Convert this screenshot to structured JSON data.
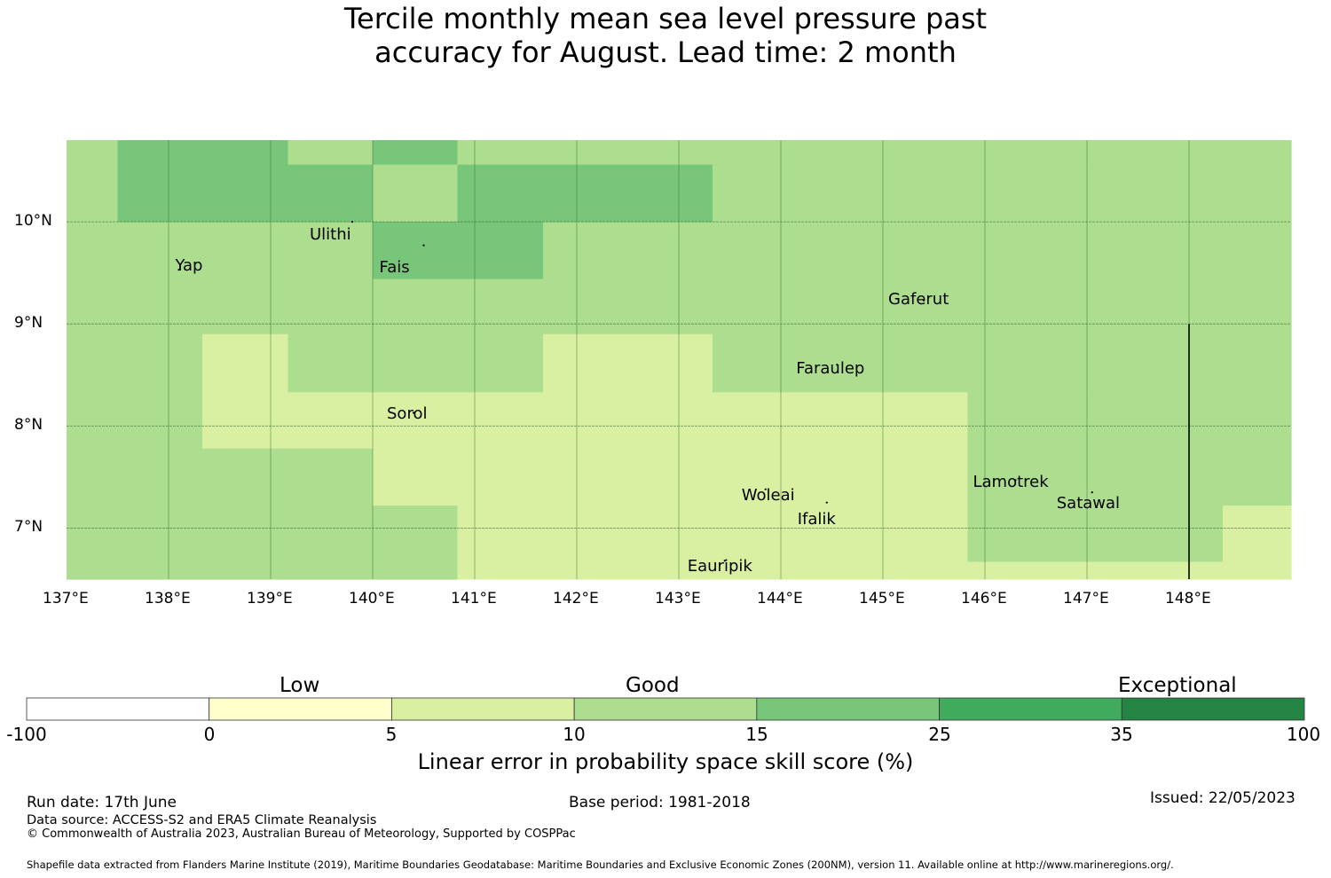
{
  "title": {
    "line1": "Tercile monthly mean sea level pressure past",
    "line2": "accuracy for August. Lead time: 2 month"
  },
  "map": {
    "lon_range": [
      137.0,
      149.0
    ],
    "lat_range": [
      6.5,
      10.8
    ],
    "x_ticks": [
      "137°E",
      "138°E",
      "139°E",
      "140°E",
      "141°E",
      "142°E",
      "143°E",
      "144°E",
      "145°E",
      "146°E",
      "147°E",
      "148°E"
    ],
    "y_ticks": [
      "10°N",
      "9°N",
      "8°N",
      "7°N"
    ],
    "grid": true,
    "places": [
      {
        "name": "Ulithi",
        "lon": 139.8,
        "lat": 10.0
      },
      {
        "name": "Fais",
        "lon": 140.5,
        "lat": 9.77
      },
      {
        "name": "Yap",
        "lon": 138.1,
        "lat": 9.53
      },
      {
        "name": "Gaferut",
        "lon": 145.4,
        "lat": 9.23
      },
      {
        "name": "Faraulep",
        "lon": 144.55,
        "lat": 8.6
      },
      {
        "name": "Sorol",
        "lon": 140.4,
        "lat": 8.13
      },
      {
        "name": "Woleai",
        "lon": 143.85,
        "lat": 7.38
      },
      {
        "name": "Ifalik",
        "lon": 144.45,
        "lat": 7.25
      },
      {
        "name": "Lamotrek",
        "lon": 146.3,
        "lat": 7.47
      },
      {
        "name": "Satawal",
        "lon": 147.05,
        "lat": 7.35
      },
      {
        "name": "Eauripik",
        "lon": 143.45,
        "lat": 6.68
      }
    ],
    "boundary_line": {
      "lon": 148.0,
      "lat_from": 6.5,
      "lat_to": 9.0
    },
    "grid_cells": [
      {
        "lon": [
          137.0,
          137.5
        ],
        "lat": [
          10.0,
          10.8
        ],
        "cls": "10-15"
      },
      {
        "lon": [
          137.5,
          139.17
        ],
        "lat": [
          10.0,
          10.8
        ],
        "cls": "15-25"
      },
      {
        "lon": [
          139.17,
          140.0
        ],
        "lat": [
          10.56,
          10.8
        ],
        "cls": "10-15"
      },
      {
        "lon": [
          139.17,
          140.0
        ],
        "lat": [
          10.0,
          10.56
        ],
        "cls": "15-25"
      },
      {
        "lon": [
          140.0,
          140.83
        ],
        "lat": [
          10.56,
          10.8
        ],
        "cls": "15-25"
      },
      {
        "lon": [
          140.0,
          140.83
        ],
        "lat": [
          10.0,
          10.56
        ],
        "cls": "10-15"
      },
      {
        "lon": [
          140.83,
          149.0
        ],
        "lat": [
          10.56,
          10.8
        ],
        "cls": "10-15"
      },
      {
        "lon": [
          140.83,
          143.33
        ],
        "lat": [
          10.0,
          10.56
        ],
        "cls": "15-25"
      },
      {
        "lon": [
          143.33,
          149.0
        ],
        "lat": [
          10.0,
          10.56
        ],
        "cls": "10-15"
      },
      {
        "lon": [
          137.0,
          140.0
        ],
        "lat": [
          8.9,
          10.0
        ],
        "cls": "10-15"
      },
      {
        "lon": [
          140.0,
          141.67
        ],
        "lat": [
          9.44,
          10.0
        ],
        "cls": "15-25"
      },
      {
        "lon": [
          140.0,
          141.67
        ],
        "lat": [
          8.9,
          9.44
        ],
        "cls": "10-15"
      },
      {
        "lon": [
          141.67,
          149.0
        ],
        "lat": [
          8.9,
          10.0
        ],
        "cls": "10-15"
      },
      {
        "lon": [
          137.0,
          138.33
        ],
        "lat": [
          6.5,
          8.9
        ],
        "cls": "10-15"
      },
      {
        "lon": [
          138.33,
          139.17
        ],
        "lat": [
          7.78,
          8.9
        ],
        "cls": "5-10"
      },
      {
        "lon": [
          139.17,
          141.67
        ],
        "lat": [
          8.33,
          8.9
        ],
        "cls": "10-15"
      },
      {
        "lon": [
          139.17,
          141.67
        ],
        "lat": [
          7.78,
          8.33
        ],
        "cls": "5-10"
      },
      {
        "lon": [
          138.33,
          140.0
        ],
        "lat": [
          6.5,
          7.78
        ],
        "cls": "10-15"
      },
      {
        "lon": [
          140.0,
          141.67
        ],
        "lat": [
          7.22,
          7.78
        ],
        "cls": "5-10"
      },
      {
        "lon": [
          140.0,
          140.83
        ],
        "lat": [
          6.5,
          7.22
        ],
        "cls": "10-15"
      },
      {
        "lon": [
          140.83,
          141.67
        ],
        "lat": [
          6.5,
          7.22
        ],
        "cls": "5-10"
      },
      {
        "lon": [
          141.67,
          143.33
        ],
        "lat": [
          6.5,
          8.9
        ],
        "cls": "5-10"
      },
      {
        "lon": [
          143.33,
          145.83
        ],
        "lat": [
          8.33,
          8.9
        ],
        "cls": "10-15"
      },
      {
        "lon": [
          143.33,
          145.83
        ],
        "lat": [
          6.5,
          8.33
        ],
        "cls": "5-10"
      },
      {
        "lon": [
          145.83,
          149.0
        ],
        "lat": [
          8.33,
          8.9
        ],
        "cls": "10-15"
      },
      {
        "lon": [
          145.83,
          148.33
        ],
        "lat": [
          6.67,
          8.33
        ],
        "cls": "10-15"
      },
      {
        "lon": [
          145.83,
          148.33
        ],
        "lat": [
          6.5,
          6.67
        ],
        "cls": "5-10"
      },
      {
        "lon": [
          148.33,
          149.0
        ],
        "lat": [
          7.22,
          8.33
        ],
        "cls": "10-15"
      },
      {
        "lon": [
          148.33,
          149.0
        ],
        "lat": [
          6.5,
          7.22
        ],
        "cls": "5-10"
      }
    ]
  },
  "colorbar": {
    "categories": [
      "Low",
      "Good",
      "Exceptional"
    ],
    "ticks": [
      "-100",
      "0",
      "5",
      "10",
      "15",
      "25",
      "35",
      "100"
    ],
    "bins": [
      {
        "range": "-100 to 0",
        "color": "#ffffff"
      },
      {
        "range": "0 to 5",
        "color": "#ffffcc"
      },
      {
        "range": "5 to 10",
        "color": "#d9f0a3"
      },
      {
        "range": "10 to 15",
        "color": "#addd8e"
      },
      {
        "range": "15 to 25",
        "color": "#78c679"
      },
      {
        "range": "25 to 35",
        "color": "#41ab5d"
      },
      {
        "range": "35 to 100",
        "color": "#238443"
      }
    ],
    "label": "Linear error in probability space skill score (%)"
  },
  "footer": {
    "run_date": "Run date: 17th June",
    "base_period": "Base period: 1981-2018",
    "issued": "Issued: 22/05/2023",
    "data_source": "Data source: ACCESS-S2 and ERA5 Climate Reanalysis",
    "copyright": "© Commonwealth of Australia 2023, Australian Bureau of Meteorology, Supported by COSPPac",
    "shapefile": "Shapefile data extracted from Flanders Marine Institute (2019), Maritime Boundaries Geodatabase: Maritime Boundaries and Exclusive Economic Zones (200NM), version 11. Available online at http://www.marineregions.org/."
  }
}
